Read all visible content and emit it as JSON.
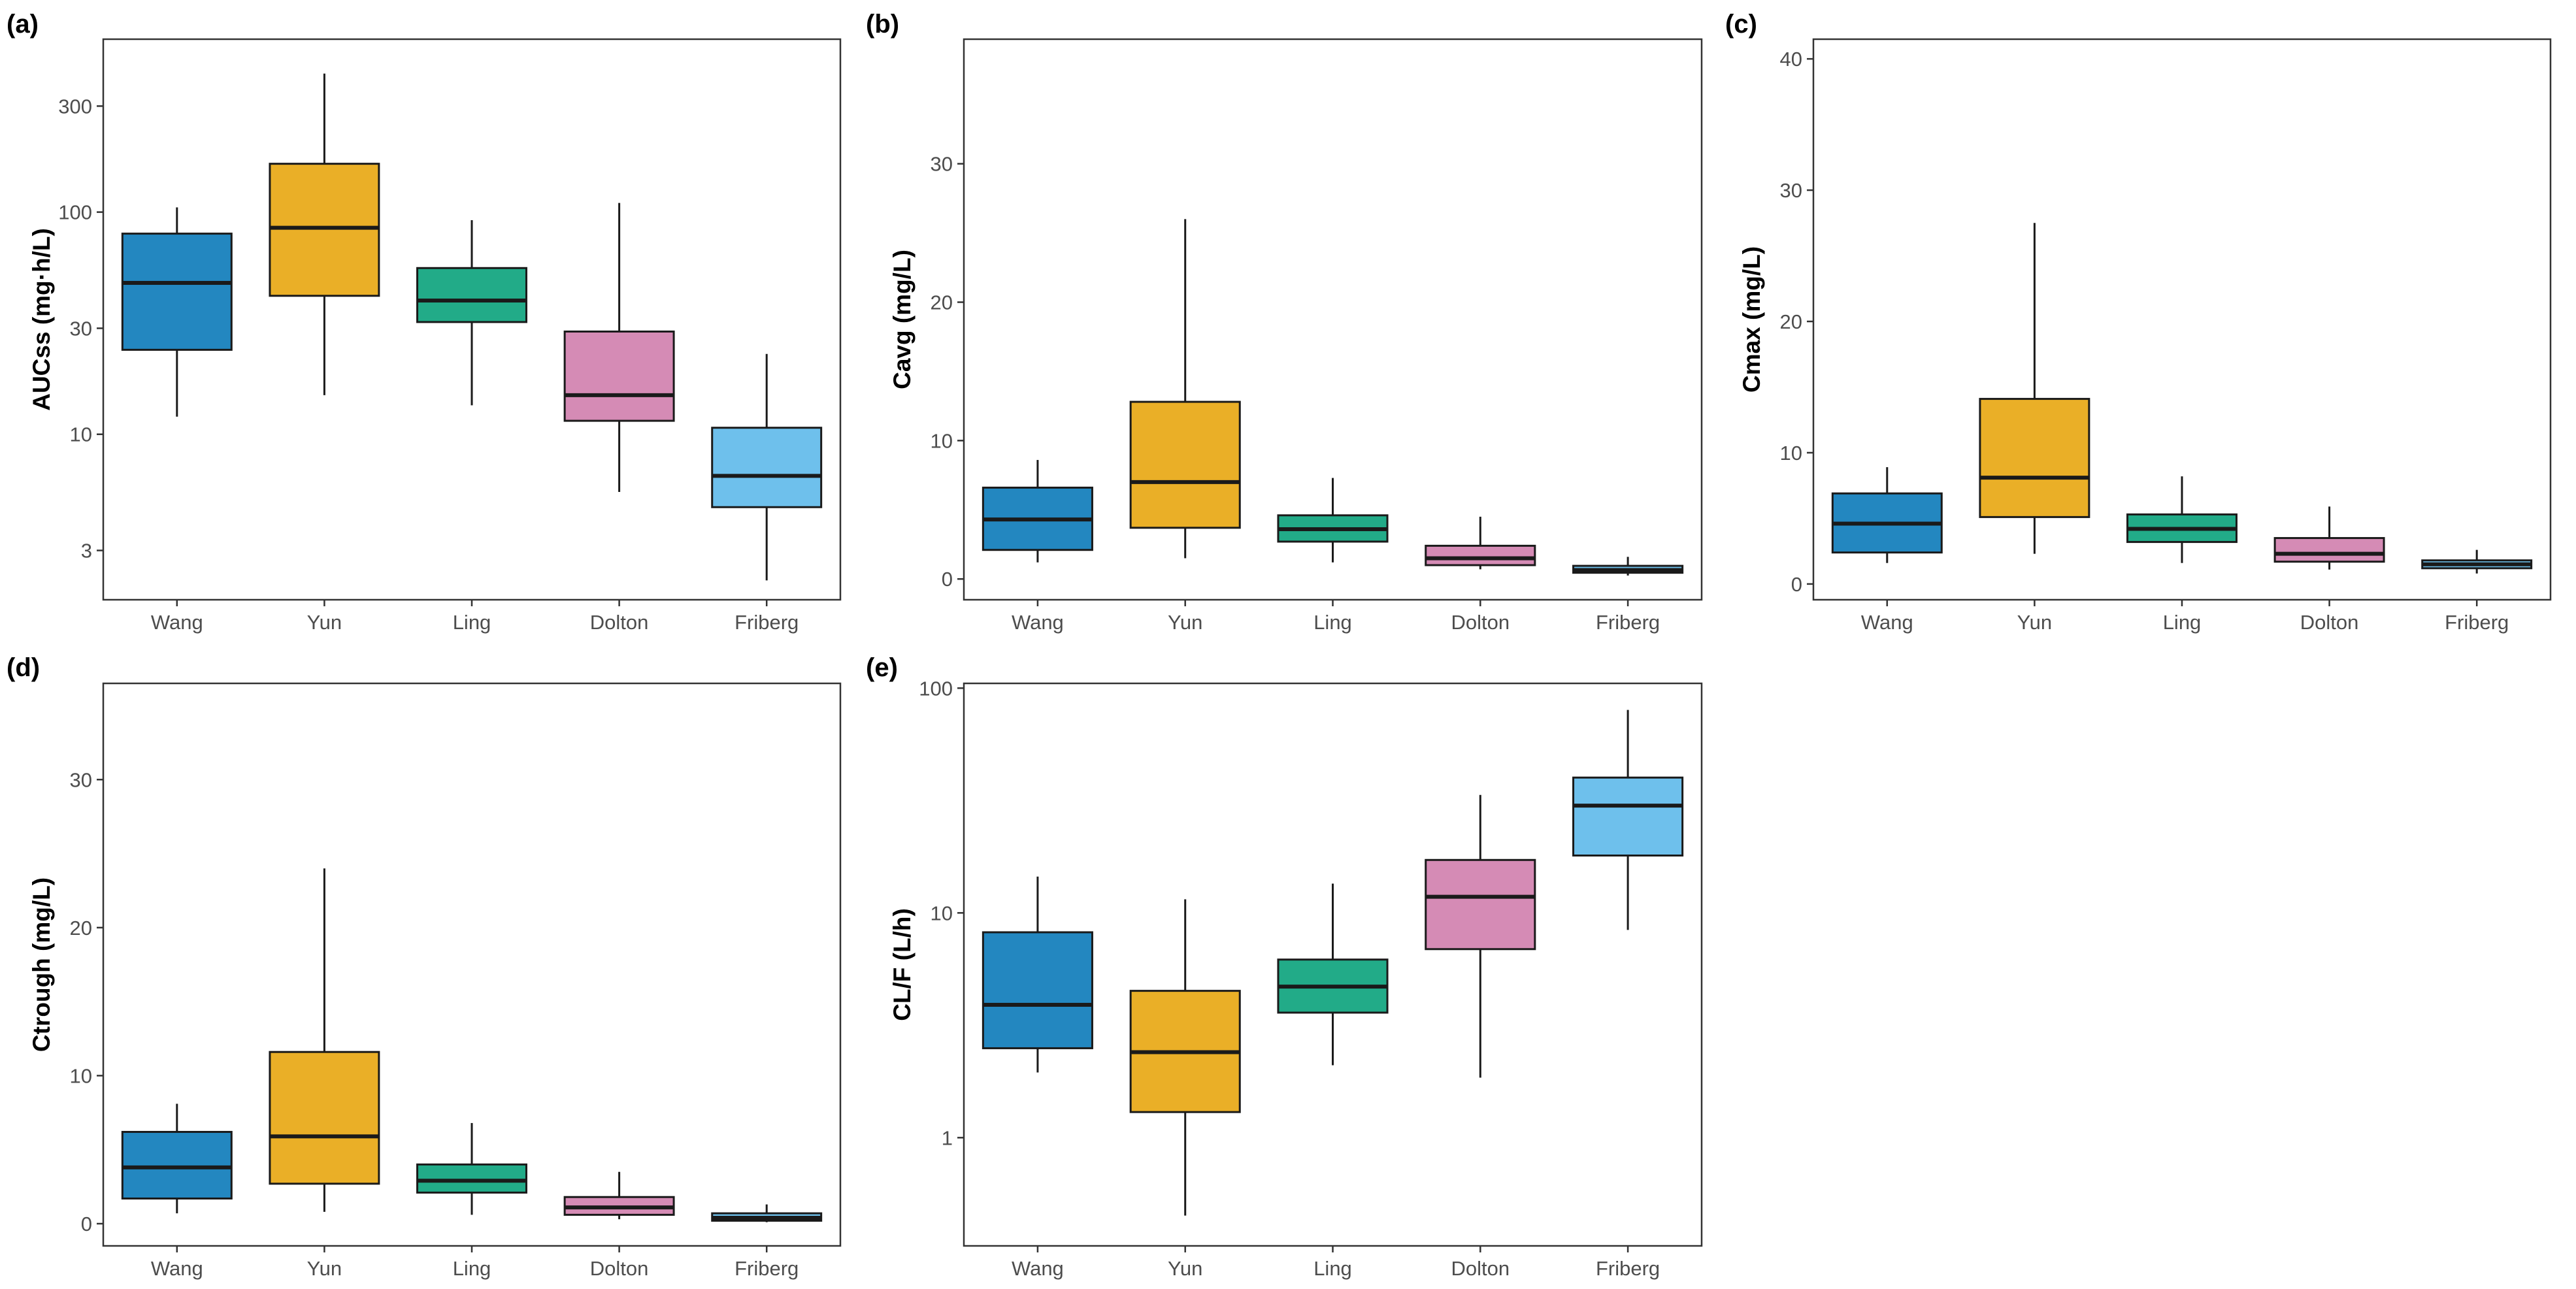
{
  "colors": {
    "Wang": "#2387C0",
    "Yun": "#EAAF27",
    "Ling": "#22AB88",
    "Dolton": "#D58BB5",
    "Friberg": "#6EC0EC"
  },
  "chart_data": [
    {
      "type": "box",
      "panel": "(a)",
      "title": "",
      "xlabel": "",
      "ylabel": "AUCss (mg·h/L)",
      "scale": "log",
      "ylim": [
        1.8,
        600
      ],
      "yticks": [
        3,
        10,
        30,
        100,
        300
      ],
      "yticklabels": [
        "3",
        "10",
        "30",
        "100",
        "300"
      ],
      "categories": [
        "Wang",
        "Yun",
        "Ling",
        "Dolton",
        "Friberg"
      ],
      "boxes": [
        {
          "min": 12,
          "q1": 24,
          "median": 48,
          "q3": 80,
          "max": 105
        },
        {
          "min": 15,
          "q1": 42,
          "median": 85,
          "q3": 165,
          "max": 420
        },
        {
          "min": 13.5,
          "q1": 32,
          "median": 40,
          "q3": 56,
          "max": 92
        },
        {
          "min": 5.5,
          "q1": 11.5,
          "median": 15,
          "q3": 29,
          "max": 110
        },
        {
          "min": 2.2,
          "q1": 4.7,
          "median": 6.5,
          "q3": 10.7,
          "max": 23
        }
      ]
    },
    {
      "type": "box",
      "panel": "(b)",
      "title": "",
      "xlabel": "",
      "ylabel": "Cavg (mg/L)",
      "scale": "linear",
      "ylim": [
        -1.5,
        39
      ],
      "yticks": [
        0,
        10,
        20,
        30
      ],
      "yticklabels": [
        "0",
        "10",
        "20",
        "30"
      ],
      "categories": [
        "Wang",
        "Yun",
        "Ling",
        "Dolton",
        "Friberg"
      ],
      "boxes": [
        {
          "min": 1.2,
          "q1": 2.1,
          "median": 4.3,
          "q3": 6.6,
          "max": 8.6
        },
        {
          "min": 1.5,
          "q1": 3.7,
          "median": 7.0,
          "q3": 12.8,
          "max": 26
        },
        {
          "min": 1.2,
          "q1": 2.7,
          "median": 3.6,
          "q3": 4.6,
          "max": 7.3
        },
        {
          "min": 0.7,
          "q1": 1.0,
          "median": 1.5,
          "q3": 2.4,
          "max": 4.5
        },
        {
          "min": 0.25,
          "q1": 0.45,
          "median": 0.65,
          "q3": 0.95,
          "max": 1.6
        }
      ]
    },
    {
      "type": "box",
      "panel": "(c)",
      "title": "",
      "xlabel": "",
      "ylabel": "Cmax (mg/L)",
      "scale": "linear",
      "ylim": [
        -1.2,
        41.5
      ],
      "yticks": [
        0,
        10,
        20,
        30,
        40
      ],
      "yticklabels": [
        "0",
        "10",
        "20",
        "30",
        "40"
      ],
      "categories": [
        "Wang",
        "Yun",
        "Ling",
        "Dolton",
        "Friberg"
      ],
      "boxes": [
        {
          "min": 1.6,
          "q1": 2.4,
          "median": 4.6,
          "q3": 6.9,
          "max": 8.9
        },
        {
          "min": 2.3,
          "q1": 5.1,
          "median": 8.1,
          "q3": 14.1,
          "max": 27.5
        },
        {
          "min": 1.6,
          "q1": 3.2,
          "median": 4.2,
          "q3": 5.3,
          "max": 8.2
        },
        {
          "min": 1.1,
          "q1": 1.7,
          "median": 2.3,
          "q3": 3.5,
          "max": 5.9
        },
        {
          "min": 0.8,
          "q1": 1.2,
          "median": 1.5,
          "q3": 1.8,
          "max": 2.6
        }
      ]
    },
    {
      "type": "box",
      "panel": "(d)",
      "title": "",
      "xlabel": "",
      "ylabel": "Ctrough (mg/L)",
      "scale": "linear",
      "ylim": [
        -1.5,
        36.5
      ],
      "yticks": [
        0,
        10,
        20,
        30
      ],
      "yticklabels": [
        "0",
        "10",
        "20",
        "30"
      ],
      "categories": [
        "Wang",
        "Yun",
        "Ling",
        "Dolton",
        "Friberg"
      ],
      "boxes": [
        {
          "min": 0.7,
          "q1": 1.7,
          "median": 3.8,
          "q3": 6.2,
          "max": 8.1
        },
        {
          "min": 0.8,
          "q1": 2.7,
          "median": 5.9,
          "q3": 11.6,
          "max": 24
        },
        {
          "min": 0.6,
          "q1": 2.1,
          "median": 2.9,
          "q3": 4.0,
          "max": 6.8
        },
        {
          "min": 0.3,
          "q1": 0.6,
          "median": 1.1,
          "q3": 1.8,
          "max": 3.5
        },
        {
          "min": 0.1,
          "q1": 0.2,
          "median": 0.4,
          "q3": 0.7,
          "max": 1.3
        }
      ]
    },
    {
      "type": "box",
      "panel": "(e)",
      "title": "",
      "xlabel": "",
      "ylabel": "CL/F (L/h)",
      "scale": "log",
      "ylim": [
        0.33,
        105
      ],
      "yticks": [
        1,
        10,
        100
      ],
      "yticklabels": [
        "1",
        "10",
        "100"
      ],
      "categories": [
        "Wang",
        "Yun",
        "Ling",
        "Dolton",
        "Friberg"
      ],
      "boxes": [
        {
          "min": 1.95,
          "q1": 2.5,
          "median": 3.9,
          "q3": 8.2,
          "max": 14.5
        },
        {
          "min": 0.45,
          "q1": 1.3,
          "median": 2.4,
          "q3": 4.5,
          "max": 11.5
        },
        {
          "min": 2.1,
          "q1": 3.6,
          "median": 4.7,
          "q3": 6.2,
          "max": 13.5
        },
        {
          "min": 1.85,
          "q1": 6.9,
          "median": 11.8,
          "q3": 17.2,
          "max": 33.5
        },
        {
          "min": 8.4,
          "q1": 18,
          "median": 30,
          "q3": 40,
          "max": 80
        }
      ]
    }
  ]
}
